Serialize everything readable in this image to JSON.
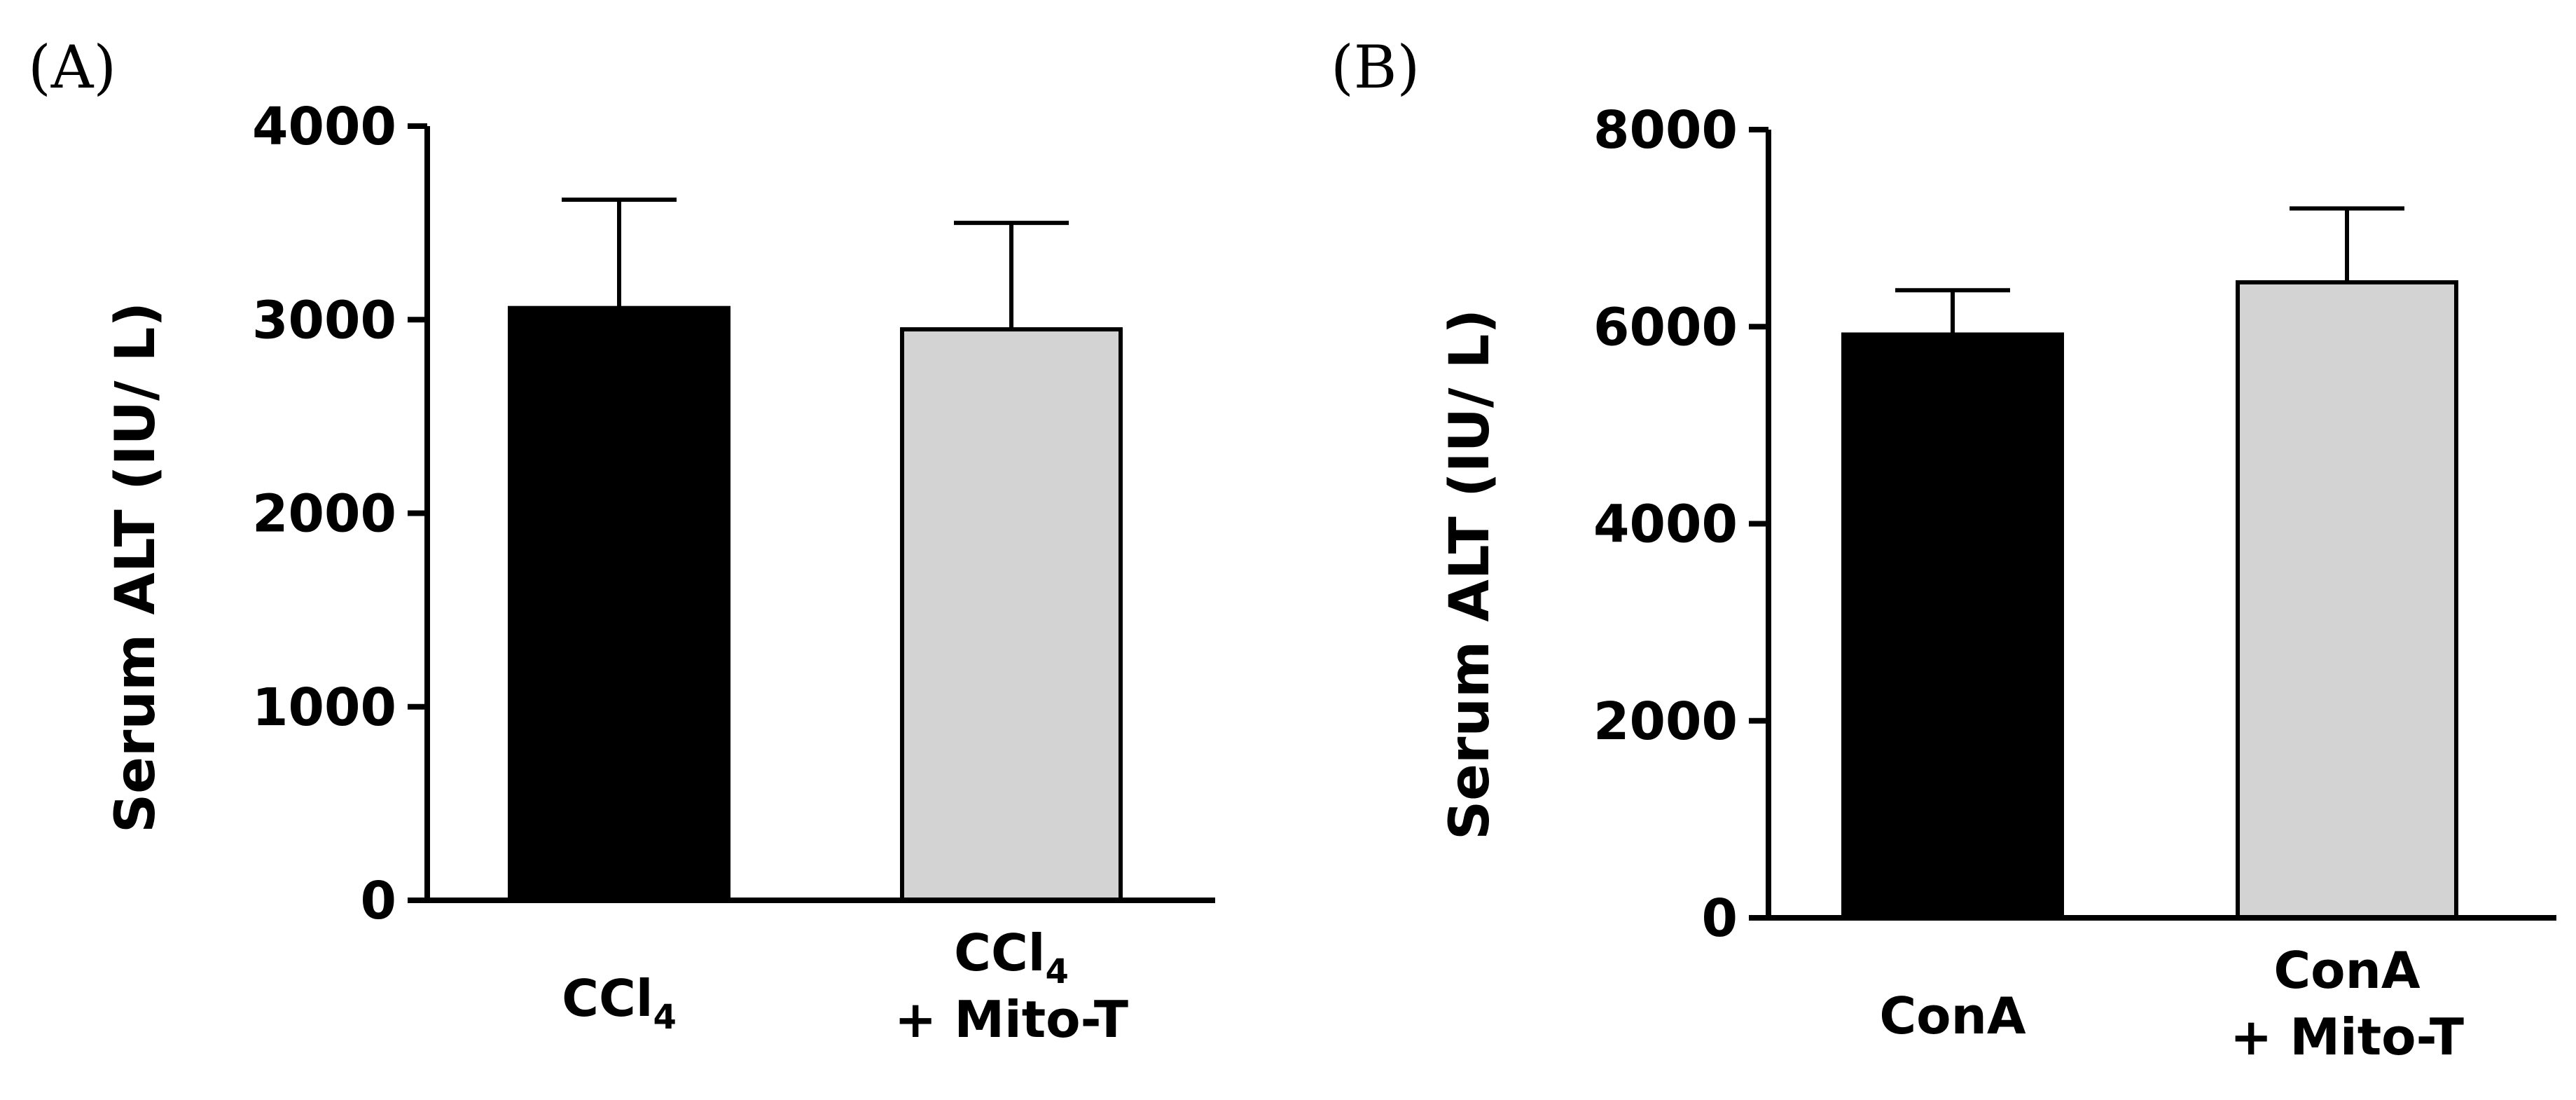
{
  "chart_data": [
    {
      "type": "bar",
      "panel_label": "(A)",
      "title": "",
      "xlabel": "",
      "ylabel": "Serum ALT (IU/ L)",
      "ylim": [
        0,
        4000
      ],
      "yticks": [
        "0",
        "1000",
        "2000",
        "3000",
        "4000"
      ],
      "categories": [
        {
          "lines": [
            {
              "text": "CCl",
              "sub": "4"
            }
          ]
        },
        {
          "lines": [
            {
              "text": "CCl",
              "sub": "4"
            },
            {
              "text": "+ Mito-T",
              "sub": ""
            }
          ]
        }
      ],
      "values": [
        3060,
        2950
      ],
      "errors": [
        560,
        550
      ],
      "colors": [
        "#000000",
        "#d3d3d3"
      ]
    },
    {
      "type": "bar",
      "panel_label": "(B)",
      "title": "",
      "xlabel": "",
      "ylabel": "Serum ALT (IU/ L)",
      "ylim": [
        0,
        8000
      ],
      "yticks": [
        "0",
        "2000",
        "4000",
        "6000",
        "8000"
      ],
      "categories": [
        {
          "lines": [
            {
              "text": "ConA",
              "sub": ""
            }
          ]
        },
        {
          "lines": [
            {
              "text": "ConA",
              "sub": ""
            },
            {
              "text": "+ Mito-T",
              "sub": ""
            }
          ]
        }
      ],
      "values": [
        5920,
        6450
      ],
      "errors": [
        450,
        750
      ],
      "colors": [
        "#000000",
        "#d3d3d3"
      ]
    }
  ]
}
